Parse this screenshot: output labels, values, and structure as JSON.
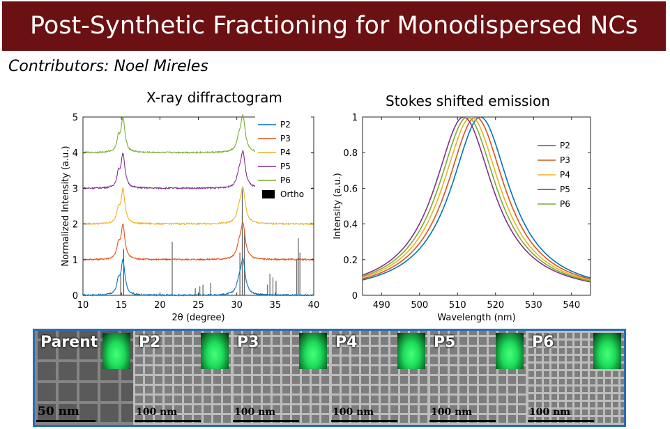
{
  "header": {
    "title": "Post-Synthetic Fractioning for Monodispersed NCs"
  },
  "contributors": "Contributors: Noel Mireles",
  "chart_data": [
    {
      "type": "line",
      "title": "X-ray diffractogram",
      "xlabel": "2θ (degree)",
      "ylabel": "Normalized Intensity (a.u.)",
      "xlim": [
        10,
        40
      ],
      "ylim": [
        0,
        5
      ],
      "xticks": [
        10,
        15,
        20,
        25,
        30,
        35,
        40
      ],
      "yticks": [
        0,
        1,
        2,
        3,
        4,
        5
      ],
      "legend_position": "right",
      "series": [
        {
          "name": "P2",
          "color": "#0072bd",
          "offset": 0
        },
        {
          "name": "P3",
          "color": "#d95319",
          "offset": 1
        },
        {
          "name": "P4",
          "color": "#edb120",
          "offset": 2
        },
        {
          "name": "P5",
          "color": "#7e2f8e",
          "offset": 3
        },
        {
          "name": "P6",
          "color": "#77ac30",
          "offset": 4
        }
      ],
      "peaks": [
        {
          "x": 14.6,
          "h": 0.35,
          "w": 0.25
        },
        {
          "x": 15.2,
          "h": 0.95,
          "w": 0.3
        },
        {
          "x": 30.3,
          "h": 0.3,
          "w": 0.35
        },
        {
          "x": 30.8,
          "h": 0.95,
          "w": 0.35
        }
      ],
      "reference": {
        "name": "Ortho",
        "color": "#000000",
        "lines": [
          [
            14.9,
            0.6
          ],
          [
            15.3,
            1.3
          ],
          [
            21.6,
            1.5
          ],
          [
            24.6,
            0.2
          ],
          [
            25.2,
            0.25
          ],
          [
            25.6,
            0.3
          ],
          [
            26.6,
            0.35
          ],
          [
            30.4,
            1.2
          ],
          [
            30.7,
            3.0
          ],
          [
            31.0,
            1.8
          ],
          [
            34.0,
            0.3
          ],
          [
            34.3,
            0.6
          ],
          [
            34.7,
            0.5
          ],
          [
            35.1,
            0.4
          ],
          [
            37.8,
            1.0
          ],
          [
            38.0,
            1.6
          ],
          [
            38.2,
            1.2
          ]
        ]
      }
    },
    {
      "type": "line",
      "title": "Stokes shifted emission",
      "xlabel": "Wavelength (nm)",
      "ylabel": "Intensity (a.u.)",
      "xlim": [
        485,
        545
      ],
      "ylim": [
        0,
        1
      ],
      "xticks": [
        490,
        500,
        510,
        520,
        530,
        540
      ],
      "yticks": [
        0,
        0.2,
        0.4,
        0.6,
        0.8,
        1
      ],
      "legend_position": "right",
      "series": [
        {
          "name": "P2",
          "color": "#0072bd",
          "peak": 516.0,
          "fwhm": 19
        },
        {
          "name": "P3",
          "color": "#d95319",
          "peak": 514.8,
          "fwhm": 19
        },
        {
          "name": "P4",
          "color": "#edb120",
          "peak": 513.6,
          "fwhm": 19
        },
        {
          "name": "P5",
          "color": "#7e2f8e",
          "peak": 511.6,
          "fwhm": 19
        },
        {
          "name": "P6",
          "color": "#77ac30",
          "peak": 512.6,
          "fwhm": 19
        }
      ]
    }
  ],
  "tem": {
    "panels": [
      {
        "label": "Parent",
        "scale": "50 nm"
      },
      {
        "label": "P2",
        "scale": "100 nm"
      },
      {
        "label": "P3",
        "scale": "100 nm"
      },
      {
        "label": "P4",
        "scale": "100 nm"
      },
      {
        "label": "P5",
        "scale": "100 nm"
      },
      {
        "label": "P6",
        "scale": "100 nm"
      }
    ]
  }
}
